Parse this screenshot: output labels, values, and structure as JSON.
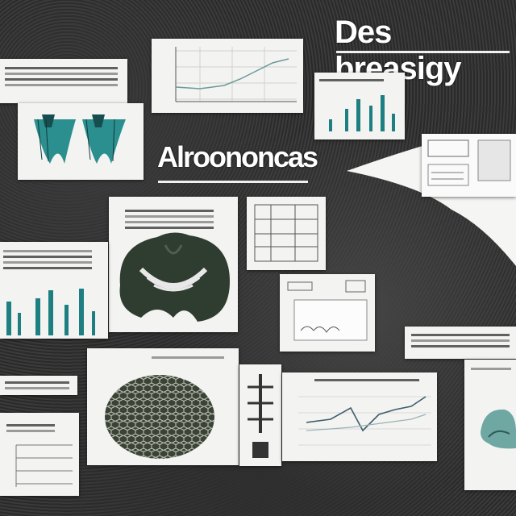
{
  "title_main": "Des breasigy",
  "title_secondary": "Alroononcas",
  "colors": {
    "background": "#333333",
    "card": "#f3f3f1",
    "accent_teal": "#1d7f81",
    "ink": "#2d3b38"
  },
  "icons": [
    "scaled-object-illustration",
    "brain-illustration",
    "hexagon-texture-illustration",
    "bar-chart",
    "line-chart",
    "table-sheet"
  ]
}
